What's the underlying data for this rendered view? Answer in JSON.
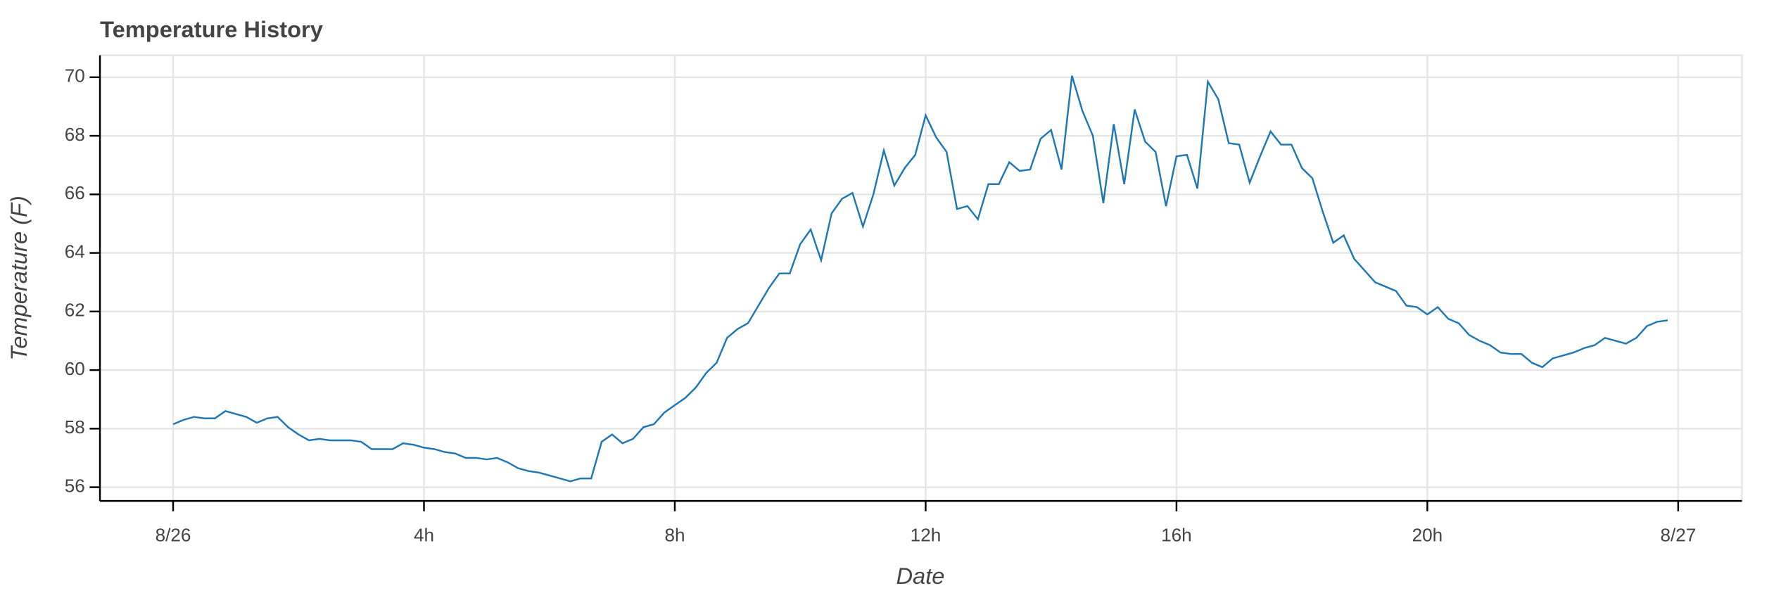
{
  "chart_data": {
    "type": "line",
    "title": "Temperature History",
    "x_label": "Date",
    "y_label": "Temperature (F)",
    "color": "#1f77b4",
    "grid": true,
    "xlim": [
      -70,
      1501
    ],
    "ylim": [
      55.53,
      70.75
    ],
    "xticks": [
      {
        "value": 0,
        "label": "8/26"
      },
      {
        "value": 240,
        "label": "4h"
      },
      {
        "value": 480,
        "label": "8h"
      },
      {
        "value": 720,
        "label": "12h"
      },
      {
        "value": 960,
        "label": "16h"
      },
      {
        "value": 1200,
        "label": "20h"
      },
      {
        "value": 1440,
        "label": "8/27"
      }
    ],
    "yticks": [
      56,
      58,
      60,
      62,
      64,
      66,
      68,
      70
    ],
    "x": [
      0,
      10,
      20,
      30,
      40,
      50,
      60,
      70,
      80,
      90,
      100,
      110,
      120,
      130,
      140,
      150,
      160,
      170,
      180,
      190,
      200,
      210,
      220,
      230,
      240,
      250,
      260,
      270,
      280,
      290,
      300,
      310,
      320,
      330,
      340,
      350,
      360,
      370,
      380,
      390,
      400,
      410,
      420,
      430,
      440,
      450,
      460,
      470,
      480,
      490,
      500,
      510,
      520,
      530,
      540,
      550,
      560,
      570,
      580,
      590,
      600,
      610,
      620,
      630,
      640,
      650,
      660,
      670,
      680,
      690,
      700,
      710,
      720,
      730,
      740,
      750,
      760,
      770,
      780,
      790,
      800,
      810,
      820,
      830,
      840,
      850,
      860,
      870,
      880,
      890,
      900,
      910,
      920,
      930,
      940,
      950,
      960,
      970,
      980,
      990,
      1000,
      1010,
      1020,
      1030,
      1040,
      1050,
      1060,
      1070,
      1080,
      1090,
      1100,
      1110,
      1120,
      1130,
      1140,
      1150,
      1160,
      1170,
      1180,
      1190,
      1200,
      1210,
      1220,
      1230,
      1240,
      1250,
      1260,
      1270,
      1280,
      1290,
      1300,
      1310,
      1320,
      1330,
      1340,
      1350,
      1360,
      1370,
      1380,
      1390,
      1400,
      1410,
      1420,
      1430
    ],
    "values": [
      58.15,
      58.3,
      58.4,
      58.35,
      58.35,
      58.6,
      58.5,
      58.4,
      58.2,
      58.35,
      58.4,
      58.05,
      57.8,
      57.6,
      57.65,
      57.6,
      57.6,
      57.6,
      57.55,
      57.3,
      57.3,
      57.3,
      57.5,
      57.45,
      57.35,
      57.3,
      57.2,
      57.15,
      57.0,
      57.0,
      56.95,
      57.0,
      56.85,
      56.65,
      56.55,
      56.5,
      56.4,
      56.3,
      56.2,
      56.3,
      56.3,
      57.55,
      57.8,
      57.5,
      57.65,
      58.05,
      58.15,
      58.55,
      58.8,
      59.05,
      59.4,
      59.9,
      60.25,
      61.1,
      61.4,
      61.6,
      62.2,
      62.8,
      63.3,
      63.3,
      64.3,
      64.8,
      63.75,
      65.35,
      65.85,
      66.05,
      64.9,
      66.0,
      67.5,
      66.3,
      66.9,
      67.35,
      68.7,
      67.95,
      67.45,
      65.5,
      65.6,
      65.15,
      66.35,
      66.35,
      67.1,
      66.8,
      66.85,
      67.9,
      68.2,
      66.85,
      70.05,
      68.85,
      68.0,
      65.7,
      68.4,
      66.35,
      68.9,
      67.8,
      67.45,
      65.6,
      67.3,
      67.35,
      66.2,
      69.85,
      69.25,
      67.75,
      67.7,
      66.4,
      67.3,
      68.15,
      67.7,
      67.7,
      66.9,
      66.55,
      65.4,
      64.35,
      64.6,
      63.8,
      63.4,
      63.0,
      62.85,
      62.7,
      62.2,
      62.15,
      61.9,
      62.15,
      61.75,
      61.6,
      61.2,
      61.0,
      60.85,
      60.6,
      60.55,
      60.55,
      60.25,
      60.1,
      60.4,
      60.5,
      60.6,
      60.75,
      60.85,
      61.1,
      61.0,
      60.9,
      61.1,
      61.5,
      61.65,
      61.7
    ]
  }
}
